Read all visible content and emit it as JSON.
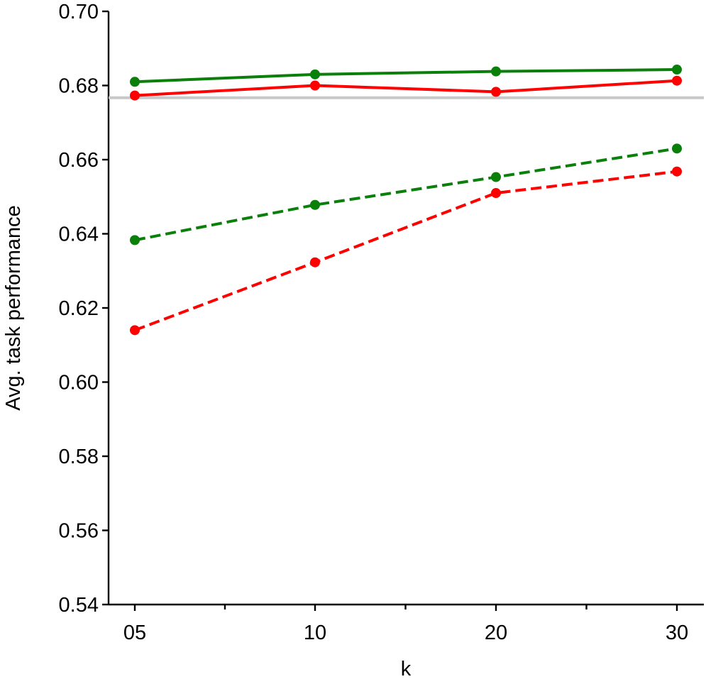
{
  "chart_data": {
    "type": "line",
    "title": "",
    "xlabel": "k",
    "ylabel": "Avg. task performance",
    "categories": [
      "05",
      "10",
      "20",
      "30"
    ],
    "ylim": [
      0.54,
      0.7
    ],
    "yticks": [
      "0.54",
      "0.56",
      "0.58",
      "0.60",
      "0.62",
      "0.64",
      "0.66",
      "0.68",
      "0.70"
    ],
    "grid": false,
    "legend": "none",
    "reference_line": {
      "y": 0.6767,
      "color": "#c8c8c8"
    },
    "series": [
      {
        "values": [
          0.681,
          0.683,
          0.6838,
          0.6843
        ],
        "color": "#0a7f0a",
        "style": "solid"
      },
      {
        "values": [
          0.6773,
          0.68,
          0.6783,
          0.6813
        ],
        "color": "#ff0000",
        "style": "solid"
      },
      {
        "values": [
          0.6383,
          0.6478,
          0.6553,
          0.663
        ],
        "color": "#0a7f0a",
        "style": "dashed"
      },
      {
        "values": [
          0.614,
          0.6323,
          0.651,
          0.6568
        ],
        "color": "#ff0000",
        "style": "dashed"
      }
    ]
  }
}
